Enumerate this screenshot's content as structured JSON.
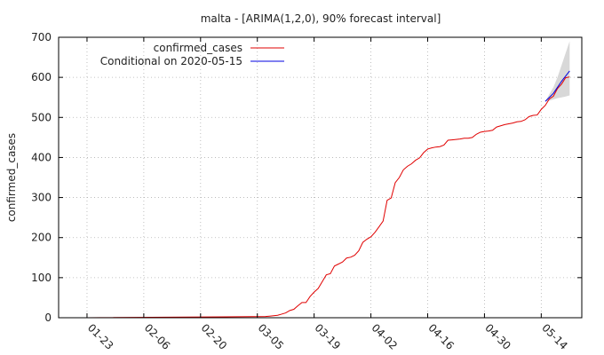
{
  "chart_data": {
    "type": "line",
    "title": "malta -  [ARIMA(1,2,0), 90% forecast interval]",
    "ylabel": "confirmed_cases",
    "xlabel": "",
    "ylim": [
      0,
      700
    ],
    "yticks": [
      0,
      100,
      200,
      300,
      400,
      500,
      600,
      700
    ],
    "xticks": [
      "01-23",
      "02-06",
      "02-20",
      "03-05",
      "03-19",
      "04-02",
      "04-16",
      "04-30",
      "05-14"
    ],
    "grid": true,
    "legend_position": "top-left",
    "series": [
      {
        "name": "confirmed_cases",
        "color": "#e00000",
        "x": [
          "01-23",
          "03-07",
          "03-08",
          "03-09",
          "03-10",
          "03-11",
          "03-12",
          "03-13",
          "03-14",
          "03-15",
          "03-16",
          "03-17",
          "03-18",
          "03-19",
          "03-20",
          "03-21",
          "03-22",
          "03-23",
          "03-24",
          "03-25",
          "03-26",
          "03-27",
          "03-28",
          "03-29",
          "03-30",
          "03-31",
          "04-01",
          "04-02",
          "04-03",
          "04-04",
          "04-05",
          "04-06",
          "04-07",
          "04-08",
          "04-09",
          "04-10",
          "04-11",
          "04-12",
          "04-13",
          "04-14",
          "04-15",
          "04-16",
          "04-17",
          "04-18",
          "04-19",
          "04-20",
          "04-21",
          "04-22",
          "04-23",
          "04-24",
          "04-25",
          "04-26",
          "04-27",
          "04-28",
          "04-29",
          "04-30",
          "05-01",
          "05-02",
          "05-03",
          "05-04",
          "05-05",
          "05-06",
          "05-07",
          "05-08",
          "05-09",
          "05-10",
          "05-11",
          "05-12",
          "05-13",
          "05-14",
          "05-15",
          "05-16",
          "05-17",
          "05-18",
          "05-19",
          "05-20",
          "05-21"
        ],
        "y": [
          0,
          3,
          4,
          5,
          6,
          9,
          12,
          18,
          21,
          30,
          38,
          38,
          53,
          64,
          73,
          90,
          107,
          110,
          129,
          134,
          139,
          149,
          151,
          156,
          167,
          188,
          196,
          202,
          213,
          227,
          241,
          293,
          299,
          337,
          350,
          369,
          378,
          384,
          393,
          399,
          412,
          421,
          424,
          426,
          427,
          431,
          443,
          444,
          445,
          446,
          448,
          448,
          450,
          458,
          463,
          465,
          466,
          468,
          476,
          479,
          482,
          484,
          486,
          489,
          490,
          494,
          502,
          505,
          506,
          520,
          530,
          546,
          553,
          572,
          583,
          599,
          601
        ]
      },
      {
        "name": "Conditional on 2020-05-15",
        "color": "#0000e0",
        "x": [
          "05-15",
          "05-16",
          "05-17",
          "05-18",
          "05-19",
          "05-20",
          "05-21"
        ],
        "y": [
          540,
          550,
          560,
          575,
          590,
          603,
          616
        ]
      }
    ],
    "forecast_interval": {
      "level": "90%",
      "color": "#d8d8d8",
      "x": [
        "05-15",
        "05-16",
        "05-17",
        "05-18",
        "05-19",
        "05-20",
        "05-21"
      ],
      "lower": [
        540,
        542,
        545,
        548,
        550,
        552,
        555
      ],
      "upper": [
        540,
        558,
        575,
        600,
        630,
        660,
        690
      ]
    }
  }
}
